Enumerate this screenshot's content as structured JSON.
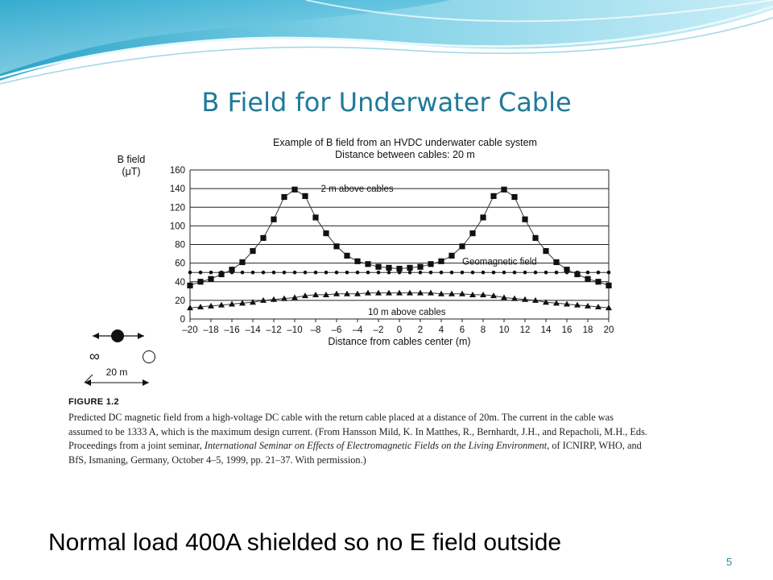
{
  "slide": {
    "title": "B Field for Underwater Cable",
    "footer_note": "Normal load 400A shielded so no E field outside",
    "slide_number": "5"
  },
  "figure": {
    "label": "FIGURE 1.2",
    "caption_parts": [
      "Predicted DC magnetic field from a high-voltage DC cable with the return cable placed at a distance of 20m. The current in the cable was assumed to be 1333 A, which is the maximum design current. (From Hansson Mild, K. In Matthes, R., Bernhardt, J.H., and Repacholi, M.H., Eds. Proceedings from a joint seminar, ",
      "International Seminar on Effects of Electromagnetic Fields on the Living Environment",
      ", of ICNIRP, WHO, and BfS, Ismaning, Germany, October 4–5, 1999, pp. 21–37. With permission.)"
    ],
    "cable_diagram": {
      "spacing_label": "20 m",
      "infinity_symbol": "∞"
    }
  },
  "chart_data": {
    "type": "line",
    "title": "Example of B field from an HVDC underwater cable system",
    "subtitle": "Distance between cables: 20 m",
    "ylabel": "B field",
    "ylabel_unit": "(μT)",
    "xlabel": "Distance from cables center (m)",
    "xlim": [
      -20,
      20
    ],
    "ylim": [
      0,
      160
    ],
    "x_ticks": [
      -20,
      -18,
      -16,
      -14,
      -12,
      -10,
      -8,
      -6,
      -4,
      -2,
      0,
      2,
      4,
      6,
      8,
      10,
      12,
      14,
      16,
      18,
      20
    ],
    "x_tick_labels": [
      "–20",
      "–18",
      "–16",
      "–14",
      "–12",
      "–10",
      "–8",
      "–6",
      "–4",
      "–2",
      "0",
      "2",
      "4",
      "6",
      "8",
      "10",
      "12",
      "14",
      "16",
      "18",
      "20"
    ],
    "y_ticks": [
      0,
      20,
      40,
      60,
      80,
      100,
      120,
      140,
      160
    ],
    "grid": "horizontal",
    "series": [
      {
        "name": "2 m above cables",
        "marker": "square",
        "x": [
          -20,
          -19,
          -18,
          -17,
          -16,
          -15,
          -14,
          -13,
          -12,
          -11,
          -10,
          -9,
          -8,
          -7,
          -6,
          -5,
          -4,
          -3,
          -2,
          -1,
          0,
          1,
          2,
          3,
          4,
          5,
          6,
          7,
          8,
          9,
          10,
          11,
          12,
          13,
          14,
          15,
          16,
          17,
          18,
          19,
          20
        ],
        "y": [
          36,
          40,
          43,
          48,
          53,
          61,
          73,
          87,
          107,
          131,
          139,
          132,
          109,
          92,
          78,
          68,
          62,
          59,
          56,
          55,
          54,
          55,
          56,
          59,
          62,
          68,
          78,
          92,
          109,
          132,
          139,
          131,
          107,
          87,
          73,
          61,
          53,
          48,
          43,
          40,
          36
        ]
      },
      {
        "name": "Geomagnetic field",
        "marker": "circle",
        "x": [
          -20,
          -19,
          -18,
          -17,
          -16,
          -15,
          -14,
          -13,
          -12,
          -11,
          -10,
          -9,
          -8,
          -7,
          -6,
          -5,
          -4,
          -3,
          -2,
          -1,
          0,
          1,
          2,
          3,
          4,
          5,
          6,
          7,
          8,
          9,
          10,
          11,
          12,
          13,
          14,
          15,
          16,
          17,
          18,
          19,
          20
        ],
        "y": [
          50,
          50,
          50,
          50,
          50,
          50,
          50,
          50,
          50,
          50,
          50,
          50,
          50,
          50,
          50,
          50,
          50,
          50,
          50,
          50,
          50,
          50,
          50,
          50,
          50,
          50,
          50,
          50,
          50,
          50,
          50,
          50,
          50,
          50,
          50,
          50,
          50,
          50,
          50,
          50,
          50
        ]
      },
      {
        "name": "10 m above cables",
        "marker": "triangle",
        "x": [
          -20,
          -19,
          -18,
          -17,
          -16,
          -15,
          -14,
          -13,
          -12,
          -11,
          -10,
          -9,
          -8,
          -7,
          -6,
          -5,
          -4,
          -3,
          -2,
          -1,
          0,
          1,
          2,
          3,
          4,
          5,
          6,
          7,
          8,
          9,
          10,
          11,
          12,
          13,
          14,
          15,
          16,
          17,
          18,
          19,
          20
        ],
        "y": [
          12,
          13,
          14,
          15,
          16,
          17,
          18,
          20,
          21,
          22,
          23,
          25,
          26,
          26,
          27,
          27,
          27,
          28,
          28,
          28,
          28,
          28,
          28,
          28,
          27,
          27,
          27,
          26,
          26,
          25,
          23,
          22,
          21,
          20,
          18,
          17,
          16,
          15,
          14,
          13,
          12
        ]
      }
    ],
    "annotations": [
      {
        "text": "2 m above cables",
        "x": -7.5,
        "y": 140
      },
      {
        "text": "Geomagnetic field",
        "x": 6,
        "y": 62
      },
      {
        "text": "10 m above cables",
        "x": -3,
        "y": 8
      }
    ]
  }
}
